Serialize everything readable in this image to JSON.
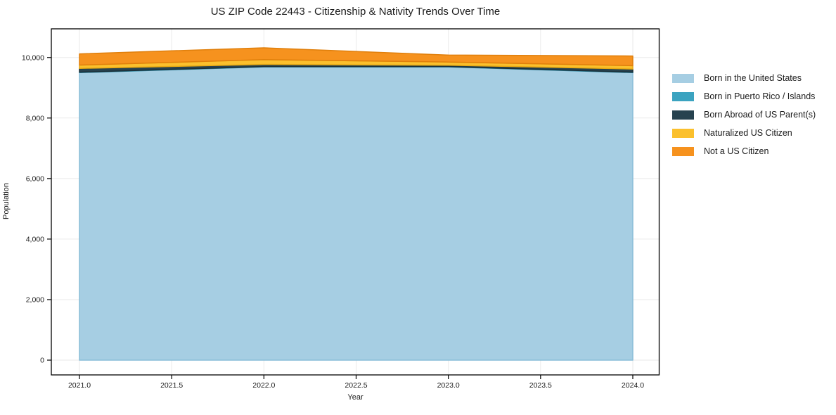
{
  "figure": {
    "background": "#ffffff",
    "grid_color": "#eaeaea",
    "spine_color": "#000000",
    "text_color": "#1a1a1a"
  },
  "chart_data": {
    "type": "area",
    "stacked": true,
    "title": "US ZIP Code 22443 - Citizenship & Nativity Trends Over Time",
    "xlabel": "Year",
    "ylabel": "Population",
    "grid": true,
    "legend_position": "outside-right-top",
    "x": [
      2021,
      2022,
      2023,
      2024
    ],
    "series": [
      {
        "name": "Born in the United States",
        "color": "#a6cee3",
        "edge_color": "#8abdd8",
        "values": [
          9500,
          9690,
          9690,
          9500
        ]
      },
      {
        "name": "Born in Puerto Rico / Islands",
        "color": "#3ba3c0",
        "edge_color": "#2f8ba5",
        "values": [
          15,
          10,
          10,
          15
        ]
      },
      {
        "name": "Born Abroad of US Parent(s)",
        "color": "#27424f",
        "edge_color": "#1b3039",
        "values": [
          125,
          70,
          45,
          105
        ]
      },
      {
        "name": "Naturalized US Citizen",
        "color": "#fbc02d",
        "edge_color": "#e8a912",
        "values": [
          110,
          160,
          105,
          110
        ]
      },
      {
        "name": "Not a US Citizen",
        "color": "#f6921e",
        "edge_color": "#e07f0b",
        "values": [
          370,
          390,
          230,
          320
        ]
      }
    ],
    "totals": [
      10120,
      10320,
      10080,
      10050
    ],
    "xticks": [
      2021.0,
      2021.5,
      2022.0,
      2022.5,
      2023.0,
      2023.5,
      2024.0
    ],
    "xtick_labels": [
      "2021.0",
      "2021.5",
      "2022.0",
      "2022.5",
      "2023.0",
      "2023.5",
      "2024.0"
    ],
    "yticks": [
      0,
      2000,
      4000,
      6000,
      8000,
      10000
    ],
    "ytick_labels": [
      "0",
      "2,000",
      "4,000",
      "6,000",
      "8,000",
      "10,000"
    ],
    "xlim": [
      2020.85,
      2024.14
    ],
    "ylim": [
      -500,
      10940
    ]
  }
}
